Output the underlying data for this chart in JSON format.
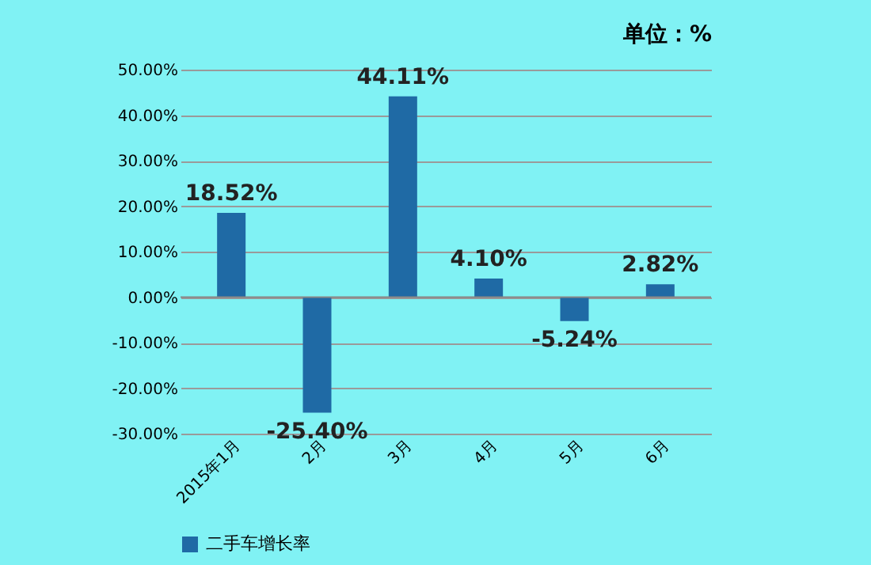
{
  "chart_data": {
    "type": "bar",
    "categories": [
      "2015年1月",
      "2月",
      "3月",
      "4月",
      "5月",
      "6月"
    ],
    "series": [
      {
        "name": "二手车增长率",
        "color": "#1f6aa5",
        "values": [
          18.52,
          -25.4,
          44.11,
          4.1,
          -5.24,
          2.82
        ],
        "value_labels": [
          "18.52%",
          "-25.40%",
          "44.11%",
          "4.10%",
          "-5.24%",
          "2.82%"
        ]
      }
    ],
    "ylim": [
      -30,
      50
    ],
    "yticks": [
      {
        "value": 50,
        "label": "50.00%"
      },
      {
        "value": 40,
        "label": "40.00%"
      },
      {
        "value": 30,
        "label": "30.00%"
      },
      {
        "value": 20,
        "label": "20.00%"
      },
      {
        "value": 10,
        "label": "10.00%"
      },
      {
        "value": 0,
        "label": "0.00%"
      },
      {
        "value": -10,
        "label": "-10.00%"
      },
      {
        "value": -20,
        "label": "-20.00%"
      },
      {
        "value": -30,
        "label": "-30.00%"
      }
    ],
    "grid": "y",
    "legend": "bottom",
    "annotations": [
      "单位：%"
    ]
  }
}
